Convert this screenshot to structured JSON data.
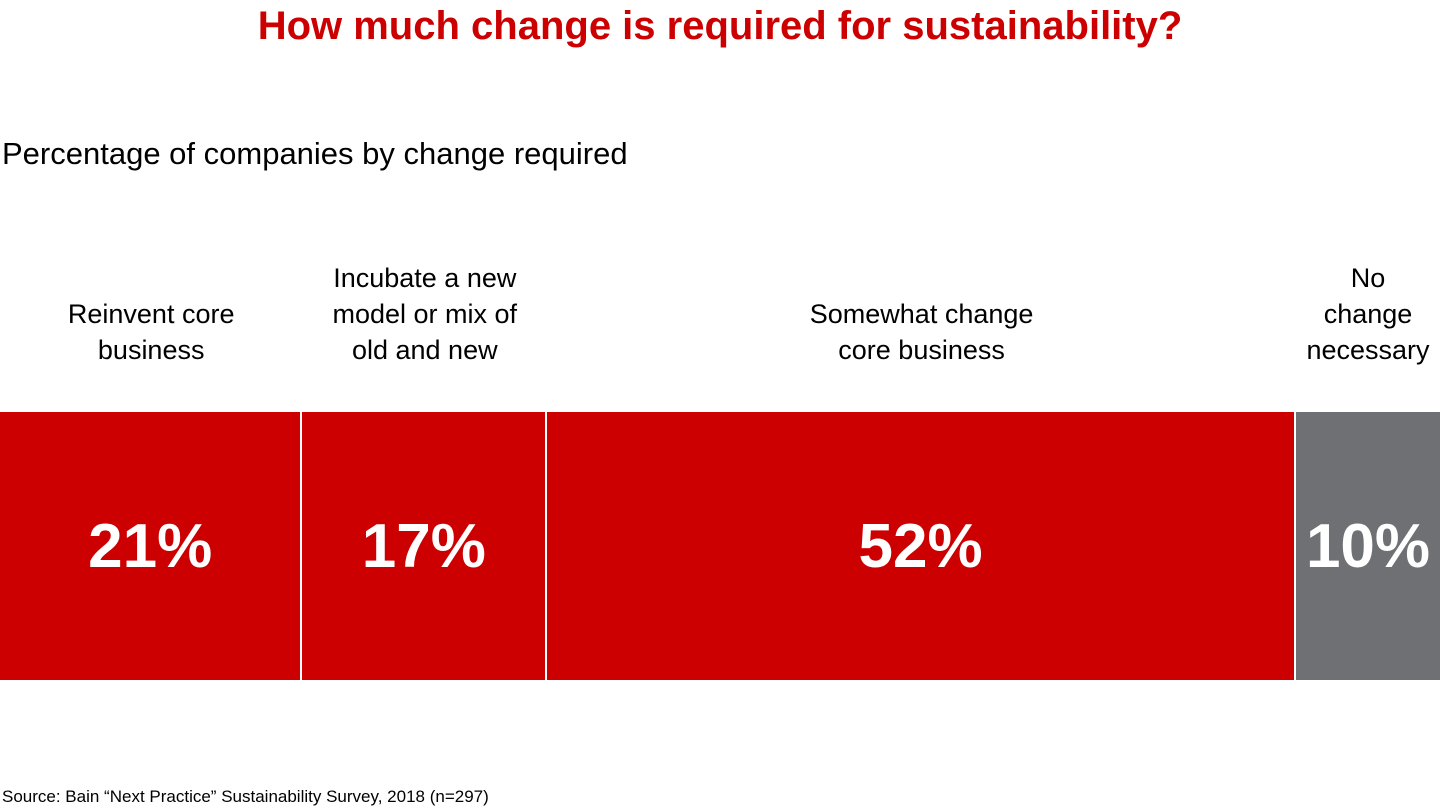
{
  "chart_data": {
    "type": "bar",
    "orientation": "horizontal-stacked-100",
    "title": "How much change is required for sustainability?",
    "subtitle": "Percentage of companies by change required",
    "categories": [
      "Reinvent core business",
      "Incubate a new model or mix of old and new",
      "Somewhat change core business",
      "No change necessary"
    ],
    "category_lines": [
      [
        "Reinvent core",
        "business"
      ],
      [
        "Incubate a new",
        "model or mix of",
        "old and new"
      ],
      [
        "Somewhat change",
        "core business"
      ],
      [
        "No",
        "change",
        "necessary"
      ]
    ],
    "values": [
      21,
      17,
      52,
      10
    ],
    "labels": [
      "21%",
      "17%",
      "52%",
      "10%"
    ],
    "colors": [
      "#cc0000",
      "#cc0000",
      "#cc0000",
      "#6f7073"
    ],
    "unit": "%",
    "source": "Source: Bain “Next Practice” Sustainability Survey, 2018 (n=297)"
  }
}
